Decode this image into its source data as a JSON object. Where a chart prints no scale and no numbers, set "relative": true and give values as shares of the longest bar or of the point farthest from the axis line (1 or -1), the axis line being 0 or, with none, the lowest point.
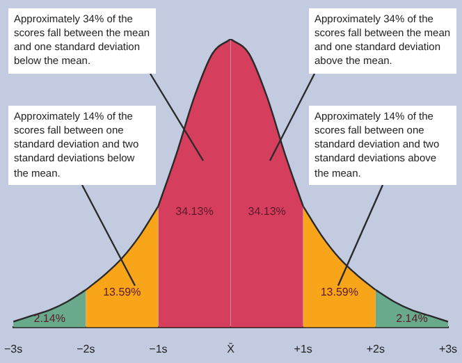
{
  "chart_data": {
    "type": "area",
    "relative": true,
    "legend": false,
    "xlim": [
      -3,
      3
    ],
    "xticks": [
      {
        "value": -3,
        "label": "−3s"
      },
      {
        "value": -2,
        "label": "−2s"
      },
      {
        "value": -1,
        "label": "−1s"
      },
      {
        "value": 0,
        "label": "X̄"
      },
      {
        "value": 1,
        "label": "+1s"
      },
      {
        "value": 2,
        "label": "+2s"
      },
      {
        "value": 3,
        "label": "+3s"
      }
    ],
    "series": [
      {
        "color": "#6aaa8c",
        "x": [
          -3,
          -2.75,
          -2.5,
          -2.25,
          -2
        ],
        "values": [
          0.02,
          0.04,
          0.06,
          0.09,
          0.13
        ]
      },
      {
        "color": "#f9a51a",
        "x": [
          -2,
          -1.75,
          -1.5,
          -1.25,
          -1
        ],
        "values": [
          0.13,
          0.18,
          0.24,
          0.32,
          0.42
        ]
      },
      {
        "color": "#d63e5e",
        "x": [
          -1,
          -0.75,
          -0.5,
          -0.25,
          0
        ],
        "values": [
          0.42,
          0.6,
          0.8,
          0.95,
          1
        ]
      },
      {
        "color": "#d63e5e",
        "x": [
          0,
          0.25,
          0.5,
          0.75,
          1
        ],
        "values": [
          1,
          0.95,
          0.8,
          0.6,
          0.42
        ]
      },
      {
        "color": "#f9a51a",
        "x": [
          1,
          1.25,
          1.5,
          1.75,
          2
        ],
        "values": [
          0.42,
          0.32,
          0.24,
          0.18,
          0.13
        ]
      },
      {
        "color": "#6aaa8c",
        "x": [
          2,
          2.25,
          2.5,
          2.75,
          3
        ],
        "values": [
          0.13,
          0.09,
          0.06,
          0.04,
          0.02
        ]
      }
    ],
    "annotations": [
      "Approximately 34% of the scores fall between the mean and one standard deviation below the mean.",
      "Approximately 14% of the scores fall between one standard deviation and two standard deviations below the mean.",
      "Approximately 34% of the scores fall between the mean and one standard deviation above the mean.",
      "Approximately 14% of the scores fall between one standard deviation and two standard deviations above the mean.",
      "2.14%",
      "13.59%",
      "34.13%",
      "34.13%",
      "13.59%",
      "2.14%"
    ]
  }
}
